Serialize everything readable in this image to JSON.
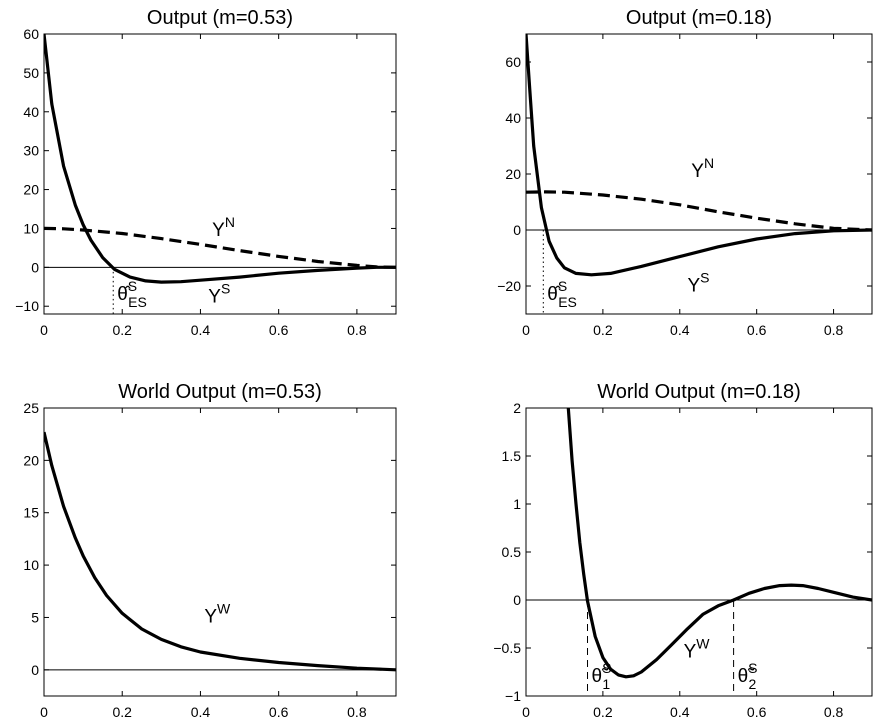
{
  "chart_data": [
    {
      "type": "line",
      "title": "Output (m=0.53)",
      "xlim": [
        0,
        0.9
      ],
      "ylim": [
        -12,
        60
      ],
      "xticks": [
        "0",
        "0.2",
        "0.4",
        "0.6",
        "0.8"
      ],
      "xtick_values": [
        0,
        0.2,
        0.4,
        0.6,
        0.8
      ],
      "yticks": [
        "−10",
        "0",
        "10",
        "20",
        "30",
        "40",
        "50",
        "60"
      ],
      "ytick_values": [
        -10,
        0,
        10,
        20,
        30,
        40,
        50,
        60
      ],
      "zero_line": true,
      "series": [
        {
          "name": "Y",
          "sup": "S",
          "style": "solid",
          "x": [
            0,
            0.02,
            0.05,
            0.08,
            0.1,
            0.12,
            0.15,
            0.18,
            0.22,
            0.26,
            0.3,
            0.35,
            0.4,
            0.5,
            0.6,
            0.7,
            0.8,
            0.85,
            0.9
          ],
          "y": [
            60,
            42,
            26,
            16,
            11,
            7,
            2.5,
            -0.5,
            -2.5,
            -3.5,
            -3.8,
            -3.7,
            -3.3,
            -2.5,
            -1.5,
            -0.8,
            -0.2,
            0,
            0
          ]
        },
        {
          "name": "Y",
          "sup": "N",
          "style": "dashed",
          "x": [
            0,
            0.05,
            0.1,
            0.2,
            0.3,
            0.4,
            0.5,
            0.6,
            0.7,
            0.8,
            0.85,
            0.9
          ],
          "y": [
            10,
            9.9,
            9.6,
            8.7,
            7.4,
            5.9,
            4.3,
            2.8,
            1.5,
            0.5,
            0.1,
            0
          ]
        }
      ],
      "labels": [
        {
          "text": "Y",
          "sup": "N",
          "x": 0.43,
          "y": 8
        },
        {
          "text": "Y",
          "sup": "S",
          "x": 0.42,
          "y": -9
        }
      ],
      "annotations": [
        {
          "text": "θ̂",
          "sup": "S",
          "sub": "ES",
          "x": 0.177,
          "style": "dotted"
        }
      ]
    },
    {
      "type": "line",
      "title": "Output (m=0.18)",
      "xlim": [
        0,
        0.9
      ],
      "ylim": [
        -30,
        70
      ],
      "xticks": [
        "0",
        "0.2",
        "0.4",
        "0.6",
        "0.8"
      ],
      "xtick_values": [
        0,
        0.2,
        0.4,
        0.6,
        0.8
      ],
      "yticks": [
        "−20",
        "0",
        "20",
        "40",
        "60"
      ],
      "ytick_values": [
        -20,
        0,
        20,
        40,
        60
      ],
      "zero_line": true,
      "series": [
        {
          "name": "Y",
          "sup": "S",
          "style": "solid",
          "x": [
            0,
            0.01,
            0.02,
            0.04,
            0.06,
            0.08,
            0.1,
            0.13,
            0.17,
            0.22,
            0.3,
            0.4,
            0.5,
            0.6,
            0.7,
            0.8,
            0.9
          ],
          "y": [
            70,
            50,
            30,
            8,
            -4,
            -10,
            -13.5,
            -15.5,
            -16,
            -15.5,
            -13,
            -9.5,
            -6,
            -3.2,
            -1.3,
            -0.3,
            0
          ]
        },
        {
          "name": "Y",
          "sup": "N",
          "style": "dashed",
          "x": [
            0,
            0.05,
            0.1,
            0.2,
            0.3,
            0.4,
            0.5,
            0.6,
            0.7,
            0.8,
            0.9
          ],
          "y": [
            13.5,
            13.6,
            13.5,
            12.5,
            11,
            9,
            6.5,
            4.2,
            2.2,
            0.6,
            0
          ]
        }
      ],
      "labels": [
        {
          "text": "Y",
          "sup": "N",
          "x": 0.43,
          "y": 19
        },
        {
          "text": "Y",
          "sup": "S",
          "x": 0.42,
          "y": -22
        }
      ],
      "annotations": [
        {
          "text": "θ̂",
          "sup": "S",
          "sub": "ES",
          "x": 0.045,
          "style": "dotted"
        }
      ]
    },
    {
      "type": "line",
      "title": "World Output (m=0.53)",
      "xlim": [
        0,
        0.9
      ],
      "ylim": [
        -2.5,
        25
      ],
      "xticks": [
        "0",
        "0.2",
        "0.4",
        "0.6",
        "0.8"
      ],
      "xtick_values": [
        0,
        0.2,
        0.4,
        0.6,
        0.8
      ],
      "yticks": [
        "0",
        "5",
        "10",
        "15",
        "20",
        "25"
      ],
      "ytick_values": [
        0,
        5,
        10,
        15,
        20,
        25
      ],
      "zero_line": true,
      "series": [
        {
          "name": "Y",
          "sup": "W",
          "style": "solid",
          "x": [
            0,
            0.02,
            0.05,
            0.08,
            0.1,
            0.13,
            0.16,
            0.2,
            0.25,
            0.3,
            0.35,
            0.4,
            0.5,
            0.6,
            0.7,
            0.8,
            0.9
          ],
          "y": [
            22.7,
            19.5,
            15.6,
            12.6,
            10.9,
            8.8,
            7.1,
            5.4,
            3.9,
            2.9,
            2.2,
            1.7,
            1.1,
            0.7,
            0.4,
            0.15,
            0
          ]
        }
      ],
      "labels": [
        {
          "text": "Y",
          "sup": "W",
          "x": 0.41,
          "y": 4.5
        }
      ],
      "annotations": []
    },
    {
      "type": "line",
      "title": "World Output (m=0.18)",
      "xlim": [
        0,
        0.9
      ],
      "ylim": [
        -1,
        2
      ],
      "xticks": [
        "0",
        "0.2",
        "0.4",
        "0.6",
        "0.8"
      ],
      "xtick_values": [
        0,
        0.2,
        0.4,
        0.6,
        0.8
      ],
      "yticks": [
        "−1",
        "−0.5",
        "0",
        "0.5",
        "1",
        "1.5",
        "2"
      ],
      "ytick_values": [
        -1,
        -0.5,
        0,
        0.5,
        1,
        1.5,
        2
      ],
      "zero_line": true,
      "series": [
        {
          "name": "Y",
          "sup": "W",
          "style": "solid",
          "x": [
            0.11,
            0.12,
            0.13,
            0.14,
            0.15,
            0.16,
            0.18,
            0.2,
            0.22,
            0.24,
            0.26,
            0.28,
            0.3,
            0.34,
            0.38,
            0.42,
            0.46,
            0.5,
            0.54,
            0.58,
            0.62,
            0.66,
            0.69,
            0.72,
            0.76,
            0.8,
            0.85,
            0.9
          ],
          "y": [
            2,
            1.45,
            1.0,
            0.6,
            0.27,
            -0.01,
            -0.38,
            -0.6,
            -0.72,
            -0.78,
            -0.8,
            -0.79,
            -0.75,
            -0.62,
            -0.46,
            -0.3,
            -0.15,
            -0.06,
            0,
            0.07,
            0.12,
            0.15,
            0.155,
            0.15,
            0.12,
            0.08,
            0.03,
            0
          ]
        }
      ],
      "labels": [
        {
          "text": "Y",
          "sup": "W",
          "x": 0.41,
          "y": -0.6
        }
      ],
      "annotations": [
        {
          "text": "θ̃",
          "sup": "S",
          "sub": "1",
          "x": 0.16,
          "style": "dashed"
        },
        {
          "text": "θ̃",
          "sup": "S",
          "sub": "2",
          "x": 0.54,
          "style": "dashed"
        }
      ]
    }
  ]
}
